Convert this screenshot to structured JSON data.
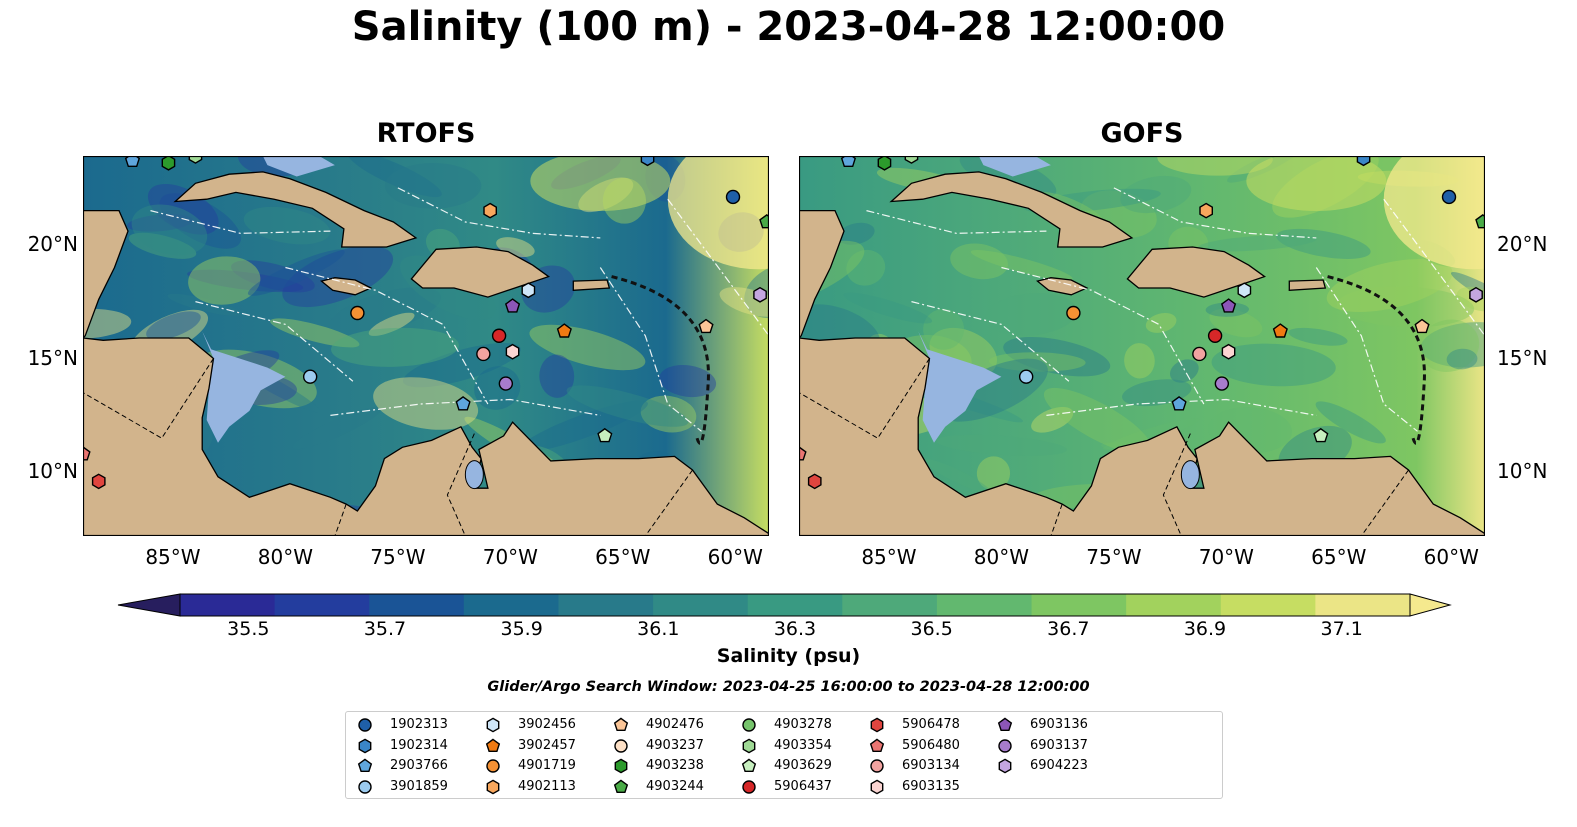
{
  "title": "Salinity (100 m) - 2023-04-28 12:00:00",
  "panels": [
    {
      "title": "RTOFS",
      "model": "rtofs"
    },
    {
      "title": "GOFS",
      "model": "gofs"
    }
  ],
  "axes": {
    "lon_ticks": [
      "85°W",
      "80°W",
      "75°W",
      "70°W",
      "65°W",
      "60°W"
    ],
    "lat_ticks": [
      "20°N",
      "15°N",
      "10°N"
    ],
    "lon_range": [
      -89,
      -58.5
    ],
    "lat_range": [
      7.2,
      23.9
    ]
  },
  "colorbar": {
    "label": "Salinity (psu)",
    "ticks": [
      "35.5",
      "35.7",
      "35.9",
      "36.1",
      "36.3",
      "36.5",
      "36.7",
      "36.9",
      "37.1"
    ],
    "range": [
      35.4,
      37.2
    ],
    "extend": "both",
    "colormap": [
      "#271e5e",
      "#2a2a96",
      "#233d9e",
      "#1a5496",
      "#1b6a8e",
      "#287a8a",
      "#308a86",
      "#399a82",
      "#4ea97a",
      "#62b86f",
      "#7ec662",
      "#a2d25d",
      "#c6dd62",
      "#ebe586",
      "#f5e98e"
    ]
  },
  "search_window": "Glider/Argo Search Window: 2023-04-25 16:00:00 to 2023-04-28 12:00:00",
  "map_colors": {
    "land": "#d2b48c",
    "shelf": "#96b5e0",
    "deep_inland": "#271d66"
  },
  "legend": [
    {
      "id": "1902313",
      "marker": "circle",
      "color": "#1f5fa8"
    },
    {
      "id": "1902314",
      "marker": "hexagon",
      "color": "#3a86c8"
    },
    {
      "id": "2903766",
      "marker": "pentagon",
      "color": "#5fa6dd"
    },
    {
      "id": "3901859",
      "marker": "circle",
      "color": "#9ccbef"
    },
    {
      "id": "3902456",
      "marker": "hexagon",
      "color": "#cfe6f8"
    },
    {
      "id": "3902457",
      "marker": "pentagon",
      "color": "#f07a12"
    },
    {
      "id": "4901719",
      "marker": "circle",
      "color": "#f59134"
    },
    {
      "id": "4902113",
      "marker": "hexagon",
      "color": "#f8a75d"
    },
    {
      "id": "4902476",
      "marker": "pentagon",
      "color": "#fbc597"
    },
    {
      "id": "4903237",
      "marker": "circle",
      "color": "#fde0c6"
    },
    {
      "id": "4903238",
      "marker": "hexagon",
      "color": "#2c9a2c"
    },
    {
      "id": "4903244",
      "marker": "pentagon",
      "color": "#4aab47"
    },
    {
      "id": "4903278",
      "marker": "circle",
      "color": "#76c46c"
    },
    {
      "id": "4903354",
      "marker": "hexagon",
      "color": "#9fd995"
    },
    {
      "id": "4903629",
      "marker": "pentagon",
      "color": "#c7efbf"
    },
    {
      "id": "5906437",
      "marker": "circle",
      "color": "#d62728"
    },
    {
      "id": "5906478",
      "marker": "hexagon",
      "color": "#e0453f"
    },
    {
      "id": "5906480",
      "marker": "pentagon",
      "color": "#ea7572"
    },
    {
      "id": "6903134",
      "marker": "circle",
      "color": "#f2a3a0"
    },
    {
      "id": "6903135",
      "marker": "hexagon",
      "color": "#fbd5d2"
    },
    {
      "id": "6903136",
      "marker": "pentagon",
      "color": "#8c56b8"
    },
    {
      "id": "6903137",
      "marker": "circle",
      "color": "#a77ccc"
    },
    {
      "id": "6904223",
      "marker": "hexagon",
      "color": "#c4a6e0"
    }
  ],
  "platforms": [
    {
      "id": "2903766",
      "lon": -86.8,
      "lat": 23.7
    },
    {
      "id": "4903238",
      "lon": -85.2,
      "lat": 23.6
    },
    {
      "id": "4903354",
      "lon": -84.0,
      "lat": 23.9
    },
    {
      "id": "1902314",
      "lon": -63.9,
      "lat": 23.8
    },
    {
      "id": "1902313",
      "lon": -60.1,
      "lat": 22.1
    },
    {
      "id": "4903244",
      "lon": -58.6,
      "lat": 21.0
    },
    {
      "id": "4902113",
      "lon": -70.9,
      "lat": 21.5
    },
    {
      "id": "3902456",
      "lon": -69.2,
      "lat": 18.0
    },
    {
      "id": "6904223",
      "lon": -58.9,
      "lat": 17.8
    },
    {
      "id": "6903136",
      "lon": -69.9,
      "lat": 17.3
    },
    {
      "id": "4901719",
      "lon": -76.8,
      "lat": 17.0
    },
    {
      "id": "3902457",
      "lon": -67.6,
      "lat": 16.2
    },
    {
      "id": "5906437",
      "lon": -70.5,
      "lat": 16.0
    },
    {
      "id": "6903134",
      "lon": -71.2,
      "lat": 15.2
    },
    {
      "id": "6903135",
      "lon": -69.9,
      "lat": 15.3
    },
    {
      "id": "3901859",
      "lon": -78.9,
      "lat": 14.2
    },
    {
      "id": "6903137",
      "lon": -70.2,
      "lat": 13.9
    },
    {
      "id": "2903766",
      "lon": -72.1,
      "lat": 13.0
    },
    {
      "id": "4902476",
      "lon": -61.3,
      "lat": 16.4
    },
    {
      "id": "4903629",
      "lon": -65.8,
      "lat": 11.6
    },
    {
      "id": "5906478",
      "lon": -88.3,
      "lat": 9.6
    },
    {
      "id": "5906480",
      "lon": -89.0,
      "lat": 10.8
    }
  ]
}
